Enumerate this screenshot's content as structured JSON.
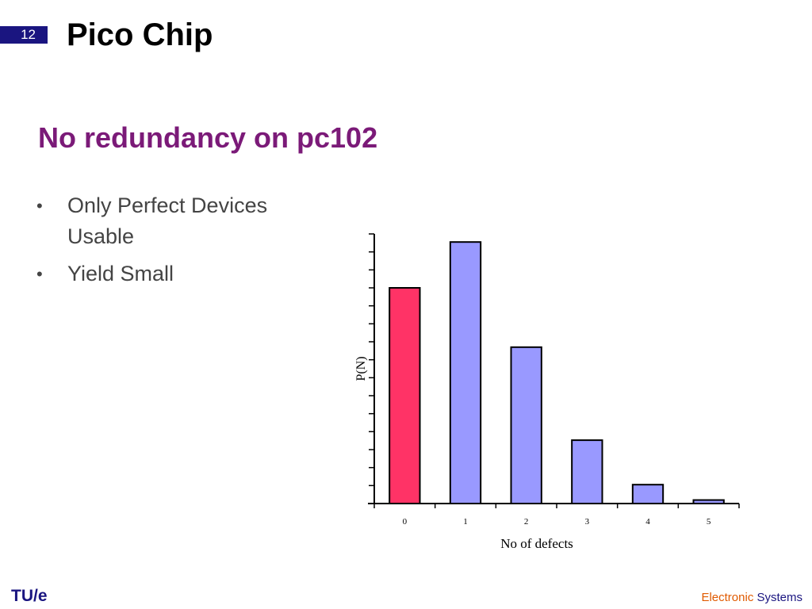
{
  "slide": {
    "number": "12",
    "title": "Pico Chip",
    "subtitle": "No redundancy on pc102",
    "bullets": [
      {
        "marker": "•",
        "text": "Only Perfect Devices Usable"
      },
      {
        "marker": "•",
        "text": "Yield Small"
      }
    ]
  },
  "footer": {
    "logo": "TU/e",
    "brand_word1": "Electronic",
    "brand_word2": "Systems"
  },
  "chart_data": {
    "type": "bar",
    "categories": [
      "0",
      "1",
      "2",
      "3",
      "4",
      "5"
    ],
    "values": [
      0.8,
      0.97,
      0.58,
      0.235,
      0.07,
      0.013
    ],
    "highlight_index": 0,
    "colors": {
      "highlight": "#ff3366",
      "bar": "#9999ff",
      "outline": "#000000"
    },
    "xlabel": "No of defects",
    "ylabel": "P(N)",
    "ylim": [
      0,
      1
    ],
    "y_tick_count": 15,
    "grid": false
  }
}
